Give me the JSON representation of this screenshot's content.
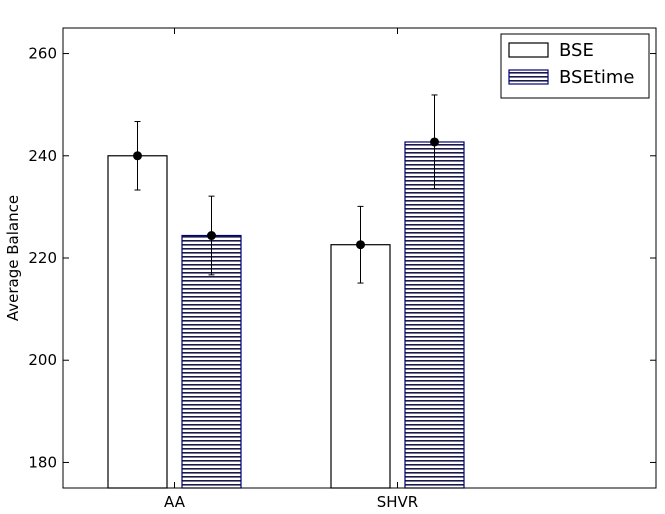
{
  "chart_data": {
    "type": "bar",
    "title": "",
    "xlabel": "",
    "ylabel": "Average Balance",
    "categories": [
      "AA",
      "SHVR"
    ],
    "ylim": [
      175,
      265
    ],
    "yticks": [
      180,
      200,
      220,
      240,
      260
    ],
    "grid": false,
    "legend_position": "top-right",
    "series": [
      {
        "name": "BSE",
        "values": [
          240.0,
          222.6
        ],
        "errors": [
          6.7,
          7.5
        ],
        "fill": "white-solid",
        "color": "#ffffff",
        "edge_color": "#000000"
      },
      {
        "name": "BSEtime",
        "values": [
          224.4,
          242.7
        ],
        "errors": [
          7.7,
          9.2
        ],
        "fill": "horizontal-hatch",
        "color": "#ffffff",
        "hatch_color": "#1a1a4a",
        "edge_color": "#00007a"
      }
    ]
  }
}
